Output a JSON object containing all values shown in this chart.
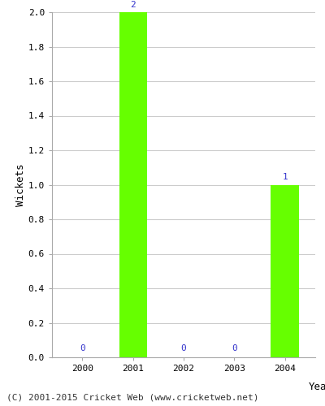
{
  "years": [
    2000,
    2001,
    2002,
    2003,
    2004
  ],
  "wickets": [
    0,
    2,
    0,
    0,
    1
  ],
  "bar_color": "#66ff00",
  "bar_edge_color": "#66ff00",
  "label_color": "#3333cc",
  "xlabel": "Year",
  "ylabel": "Wickets",
  "ylim": [
    0,
    2.0
  ],
  "yticks": [
    0.0,
    0.2,
    0.4,
    0.6,
    0.8,
    1.0,
    1.2,
    1.4,
    1.6,
    1.8,
    2.0
  ],
  "grid_color": "#cccccc",
  "background_color": "#ffffff",
  "footer": "(C) 2001-2015 Cricket Web (www.cricketweb.net)",
  "bar_width": 0.55,
  "label_fontsize": 8,
  "axis_label_fontsize": 9,
  "tick_fontsize": 8,
  "footer_fontsize": 8
}
